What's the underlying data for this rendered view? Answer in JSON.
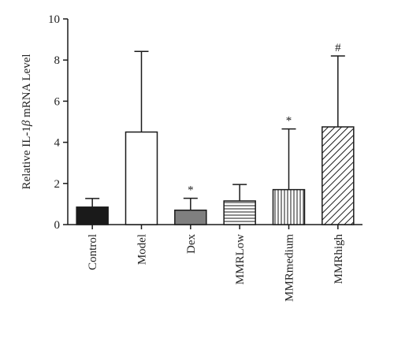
{
  "chart_data": {
    "type": "bar",
    "title": "",
    "xlabel": "",
    "ylabel_parts": [
      "Relative IL-1",
      "β",
      " mRNA Level"
    ],
    "ylim": [
      0,
      10
    ],
    "yticks": [
      0,
      2,
      4,
      6,
      8,
      10
    ],
    "grid": false,
    "categories": [
      "Control",
      "Model",
      "Dex",
      "MMRLow",
      "MMRmedium",
      "MMRhigh"
    ],
    "values": [
      0.85,
      4.5,
      0.7,
      1.15,
      1.7,
      4.75
    ],
    "errors": [
      0.42,
      3.92,
      0.58,
      0.8,
      2.95,
      3.45
    ],
    "annotations": [
      "",
      "",
      "*",
      "",
      "*",
      "#"
    ],
    "bar_styles": [
      "solid-black",
      "open",
      "solid-gray",
      "horizontal-lines",
      "vertical-lines",
      "diagonal-lines"
    ]
  },
  "colors": {
    "black": "#1a1a1a",
    "gray": "#7f7f7f",
    "white": "#ffffff"
  }
}
